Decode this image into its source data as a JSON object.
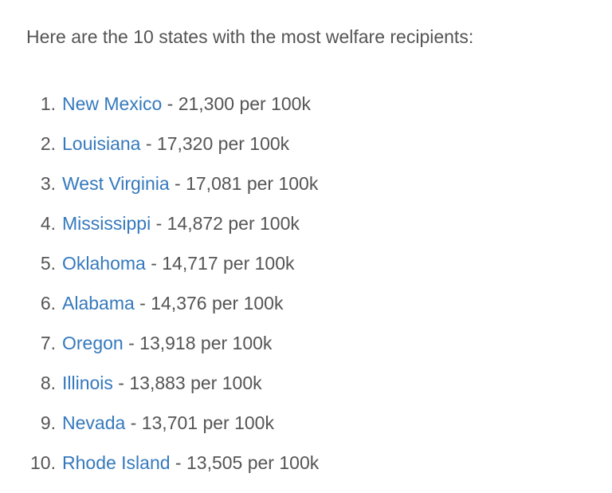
{
  "page": {
    "background": "#ffffff",
    "text_color": "#555555",
    "link_color": "#3579bd",
    "intro": "Here are the 10 states with the most welfare recipients:"
  },
  "list": {
    "separator": "-",
    "unit": "per 100k",
    "items": [
      {
        "rank": "1.",
        "state": "New Mexico",
        "per_100k": "21,300"
      },
      {
        "rank": "2.",
        "state": "Louisiana",
        "per_100k": "17,320"
      },
      {
        "rank": "3.",
        "state": "West Virginia",
        "per_100k": "17,081"
      },
      {
        "rank": "4.",
        "state": "Mississippi",
        "per_100k": "14,872"
      },
      {
        "rank": "5.",
        "state": "Oklahoma",
        "per_100k": "14,717"
      },
      {
        "rank": "6.",
        "state": "Alabama",
        "per_100k": "14,376"
      },
      {
        "rank": "7.",
        "state": "Oregon",
        "per_100k": "13,918"
      },
      {
        "rank": "8.",
        "state": "Illinois",
        "per_100k": "13,883"
      },
      {
        "rank": "9.",
        "state": "Nevada",
        "per_100k": "13,701"
      },
      {
        "rank": "10.",
        "state": "Rhode Island",
        "per_100k": "13,505"
      }
    ]
  }
}
